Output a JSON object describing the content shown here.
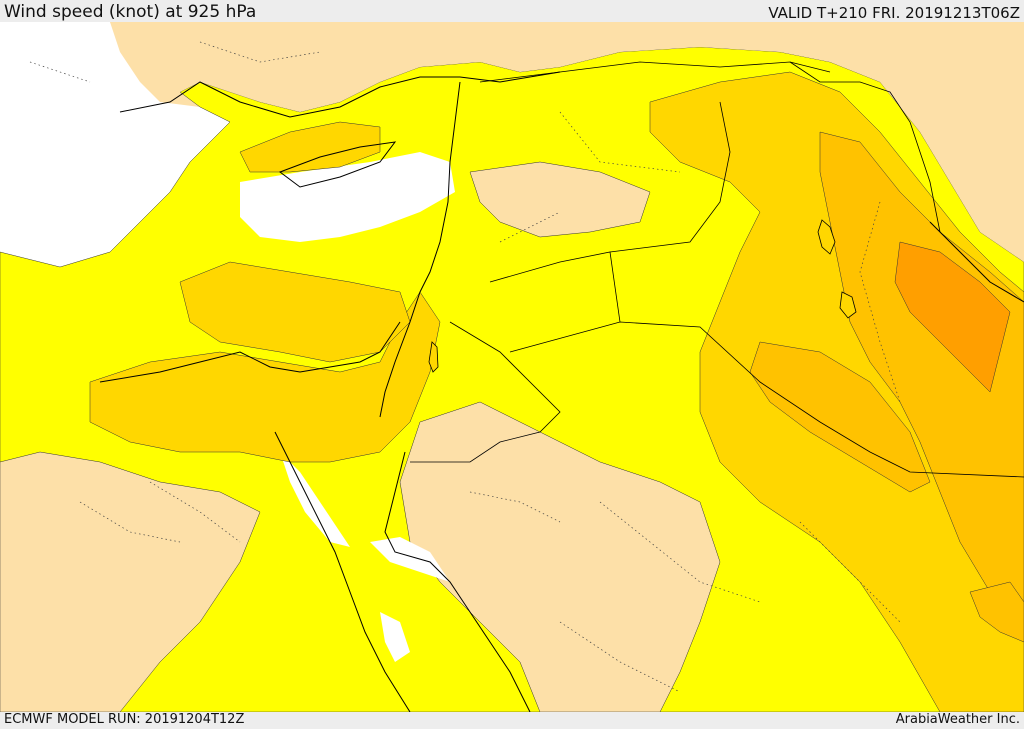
{
  "header": {
    "title": "Wind speed (knot) at 925 hPa",
    "valid_time": "VALID T+210 FRI. 20191213T06Z"
  },
  "footer": {
    "model_run": "ECMWF MODEL RUN: 20191204T12Z",
    "credit": "ArabiaWeather Inc."
  },
  "map": {
    "colors": {
      "land_calm": "#fde0a8",
      "sea_calm": "#ffffff",
      "band_1": "#ffff00",
      "band_2": "#ffd700",
      "band_3": "#ffc200",
      "band_4": "#ff9f00",
      "coastline": "#000000",
      "border": "#000000"
    }
  }
}
